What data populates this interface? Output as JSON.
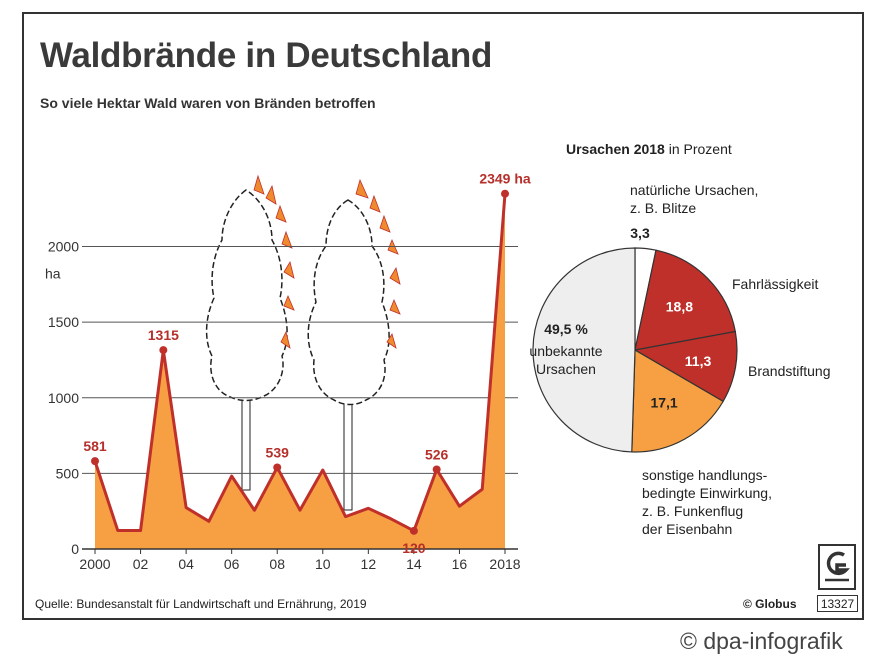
{
  "title": "Waldbrände in Deutschland",
  "subtitle": "So viele Hektar Wald waren von Bränden betroffen",
  "colors": {
    "fill": "#f7a043",
    "line": "#c0302b",
    "label": "#b5302b",
    "grid": "#555555"
  },
  "chart_data": [
    {
      "type": "area",
      "title": "Waldbrände in Deutschland",
      "subtitle": "So viele Hektar Wald waren von Bränden betroffen",
      "ylabel": "ha",
      "ylim": [
        0,
        2400
      ],
      "yticks": [
        0,
        500,
        1000,
        1500,
        2000
      ],
      "ytick_labels": [
        "0",
        "500",
        "1000",
        "1500",
        "2000"
      ],
      "xticks": [
        2000,
        2002,
        2004,
        2006,
        2008,
        2010,
        2012,
        2014,
        2016,
        2018
      ],
      "xtick_labels": [
        "2000",
        "02",
        "04",
        "06",
        "08",
        "10",
        "12",
        "14",
        "16",
        "2018"
      ],
      "x": [
        2000,
        2001,
        2002,
        2003,
        2004,
        2005,
        2006,
        2007,
        2008,
        2009,
        2010,
        2011,
        2012,
        2013,
        2014,
        2015,
        2016,
        2017,
        2018
      ],
      "values": [
        581,
        122,
        122,
        1315,
        274,
        183,
        482,
        256,
        539,
        257,
        522,
        214,
        269,
        199,
        120,
        526,
        283,
        395,
        2349
      ],
      "labels": [
        {
          "x": 2000,
          "text": "581"
        },
        {
          "x": 2003,
          "text": "1315"
        },
        {
          "x": 2008,
          "text": "539"
        },
        {
          "x": 2014,
          "text": "120"
        },
        {
          "x": 2015,
          "text": "526"
        },
        {
          "x": 2018,
          "text": "2349 ha"
        }
      ],
      "grid": true
    },
    {
      "type": "pie",
      "title": "Ursachen 2018",
      "title_suffix": "in Prozent",
      "slices": [
        {
          "name": "natürliche Ursachen, z. B. Blitze",
          "lines": [
            "natürliche Ursachen,",
            "z. B. Blitze"
          ],
          "value": 3.3,
          "label": "3,3",
          "color": "#ffffff"
        },
        {
          "name": "Fahrlässigkeit",
          "lines": [
            "Fahrlässigkeit"
          ],
          "value": 18.8,
          "label": "18,8",
          "color": "#c0302b"
        },
        {
          "name": "Brandstiftung",
          "lines": [
            "Brandstiftung"
          ],
          "value": 11.3,
          "label": "11,3",
          "color": "#c0302b"
        },
        {
          "name": "sonstige handlungsbedingte Einwirkung, z. B. Funkenflug der Eisenbahn",
          "lines": [
            "sonstige handlungs-",
            "bedingte Einwirkung,",
            "z. B. Funkenflug",
            "der Eisenbahn"
          ],
          "value": 17.1,
          "label": "17,1",
          "color": "#f7a043"
        },
        {
          "name": "unbekannte Ursachen",
          "lines": [
            "unbekannte",
            "Ursachen"
          ],
          "value": 49.5,
          "label": "49,5 %",
          "color": "#eeeeee"
        }
      ]
    }
  ],
  "source": "Quelle: Bundesanstalt für Landwirtschaft und Ernährung, 2019",
  "globus_text": "© Globus",
  "globus_number": "13327",
  "credit": "© dpa-infografik"
}
